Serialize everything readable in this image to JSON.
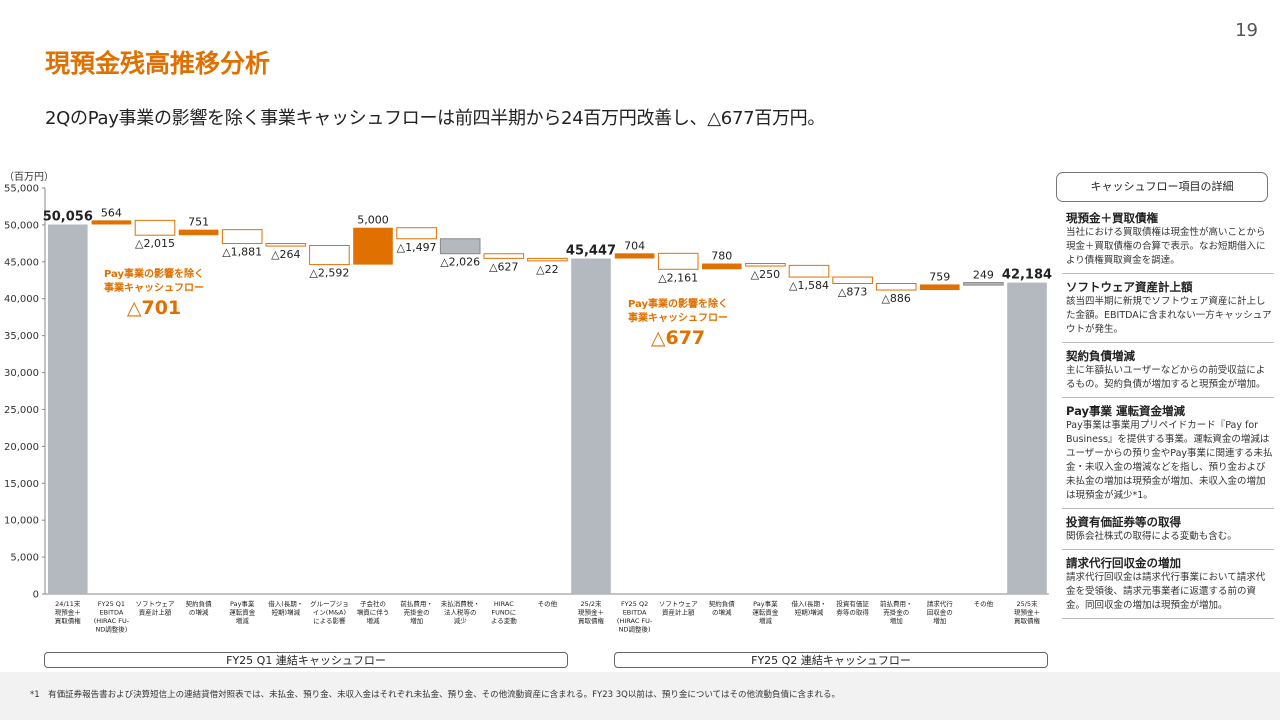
{
  "page_number": "19",
  "title": "現預金残高推移分析",
  "subtitle": "2QのPay事業の影響を除く事業キャッシュフローは前四半期から24百万円改善し、△677百万円。",
  "unit_label": "（百万円）",
  "annotations": [
    {
      "line1": "Pay事業の影響を除く",
      "line2": "事業キャッシュフロー",
      "value": "△701"
    },
    {
      "line1": "Pay事業の影響を除く",
      "line2": "事業キャッシュフロー",
      "value": "△677"
    }
  ],
  "quarter_labels": [
    "FY25 Q1 連結キャッシュフロー",
    "FY25 Q2 連結キャッシュフロー"
  ],
  "details": {
    "header": "キャッシュフロー項目の詳細",
    "items": [
      {
        "title": "現預金＋買取債権",
        "body": "当社における買取債権は現金性が高いことから現金＋買取債権の合算で表示。なお短期借入により債権買取資金を調達。"
      },
      {
        "title": "ソフトウェア資産計上額",
        "body": "該当四半期に新規でソフトウェア資産に計上した金額。EBITDAに含まれない一方キャッシュアウトが発生。"
      },
      {
        "title": "契約負債増減",
        "body": "主に年額払いユーザーなどからの前受収益によるもの。契約負債が増加すると現預金が増加。"
      },
      {
        "title": "Pay事業 運転資金増減",
        "body": "Pay事業は事業用プリペイドカード『Pay for Business』を提供する事業。運転資金の増減はユーザーからの預り金やPay事業に関連する未払金・未収入金の増減などを指し、預り金および未払金の増加は現預金が増加、未収入金の増加は現預金が減少*1。"
      },
      {
        "title": "投資有価証券等の取得",
        "body": "関係会社株式の取得による変動も含む。"
      },
      {
        "title": "請求代行回収金の増加",
        "body": "請求代行回収金は請求代行事業において請求代金を受領後、請求元事業者に返還する前の資金。同回収金の増加は現預金が増加。"
      }
    ]
  },
  "footnote": "*1　有価証券報告書および決算短信上の連結貸借対照表では、未払金、預り金、未収入金はそれぞれ未払金、預り金、その他流動資産に含まれる。FY23 3Q以前は、預り金についてはその他流動負債に含まれる。",
  "colors": {
    "accent": "#e07000",
    "total": "#b4b8bf",
    "outline": "#e07000",
    "gray_step": "#b4b8bf"
  },
  "chart_data": {
    "type": "bar",
    "subtype": "waterfall",
    "ylim": [
      0,
      55000
    ],
    "yticks": [
      0,
      5000,
      10000,
      15000,
      20000,
      25000,
      30000,
      35000,
      40000,
      45000,
      50000,
      55000
    ],
    "ytick_labels": [
      "0",
      "5,000",
      "10,000",
      "15,000",
      "20,000",
      "25,000",
      "30,000",
      "35,000",
      "40,000",
      "45,000",
      "50,000",
      "55,000"
    ],
    "grid": false,
    "bars": [
      {
        "category": [
          "24/11末",
          "現預金＋",
          "買取債権"
        ],
        "kind": "total",
        "value": 50056,
        "label": "50,056"
      },
      {
        "category": [
          "FY25 Q1",
          "EBITDA",
          "(HIRAC FU-",
          "ND調整後)"
        ],
        "kind": "up",
        "value": 564,
        "label": "564"
      },
      {
        "category": [
          "ソフトウェア",
          "資産計上額"
        ],
        "kind": "down",
        "value": -2015,
        "label": "△2,015"
      },
      {
        "category": [
          "契約負債",
          "の増減"
        ],
        "kind": "up",
        "value": 751,
        "label": "751"
      },
      {
        "category": [
          "Pay事業",
          "運転資金",
          "増減"
        ],
        "kind": "down",
        "value": -1881,
        "label": "△1,881"
      },
      {
        "category": [
          "借入(長期・",
          "短期)増減"
        ],
        "kind": "down",
        "value": -264,
        "label": "△264"
      },
      {
        "category": [
          "グループジョ",
          "イン(M&A)",
          "による影響"
        ],
        "kind": "down",
        "value": -2592,
        "label": "△2,592"
      },
      {
        "category": [
          "子会社の",
          "増資に伴う",
          "増減"
        ],
        "kind": "up",
        "value": 5000,
        "label": "5,000"
      },
      {
        "category": [
          "前払費用・",
          "売掛金の",
          "増加"
        ],
        "kind": "down",
        "value": -1497,
        "label": "△1,497"
      },
      {
        "category": [
          "未払消費税・",
          "法人税等の",
          "減少"
        ],
        "kind": "down_gray",
        "value": -2026,
        "label": "△2,026"
      },
      {
        "category": [
          "HIRAC",
          "FUNDに",
          "よる変動"
        ],
        "kind": "down",
        "value": -627,
        "label": "△627"
      },
      {
        "category": [
          "その他"
        ],
        "kind": "down",
        "value": -22,
        "label": "△22"
      },
      {
        "category": [
          "25/2末",
          "現預金＋",
          "買取債権"
        ],
        "kind": "total",
        "value": 45447,
        "label": "45,447"
      },
      {
        "category": [
          "FY25 Q2",
          "EBITDA",
          "(HIRAC FU-",
          "ND調整後)"
        ],
        "kind": "up",
        "value": 704,
        "label": "704"
      },
      {
        "category": [
          "ソフトウェア",
          "資産計上額"
        ],
        "kind": "down",
        "value": -2161,
        "label": "△2,161"
      },
      {
        "category": [
          "契約負債",
          "の増減"
        ],
        "kind": "up",
        "value": 780,
        "label": "780"
      },
      {
        "category": [
          "Pay事業",
          "運転資金",
          "増減"
        ],
        "kind": "down",
        "value": -250,
        "label": "△250"
      },
      {
        "category": [
          "借入(長期・",
          "短期)増減"
        ],
        "kind": "down",
        "value": -1584,
        "label": "△1,584"
      },
      {
        "category": [
          "投資有価証",
          "券等の取得"
        ],
        "kind": "down",
        "value": -873,
        "label": "△873"
      },
      {
        "category": [
          "前払費用・",
          "売掛金の",
          "増加"
        ],
        "kind": "down",
        "value": -886,
        "label": "△886"
      },
      {
        "category": [
          "請求代行",
          "回収金の",
          "増加"
        ],
        "kind": "up",
        "value": 759,
        "label": "759"
      },
      {
        "category": [
          "その他"
        ],
        "kind": "up_gray",
        "value": 249,
        "label": "249"
      },
      {
        "category": [
          "25/5末",
          "現預金＋",
          "買取債権"
        ],
        "kind": "total",
        "value": 42184,
        "label": "42,184"
      }
    ]
  }
}
